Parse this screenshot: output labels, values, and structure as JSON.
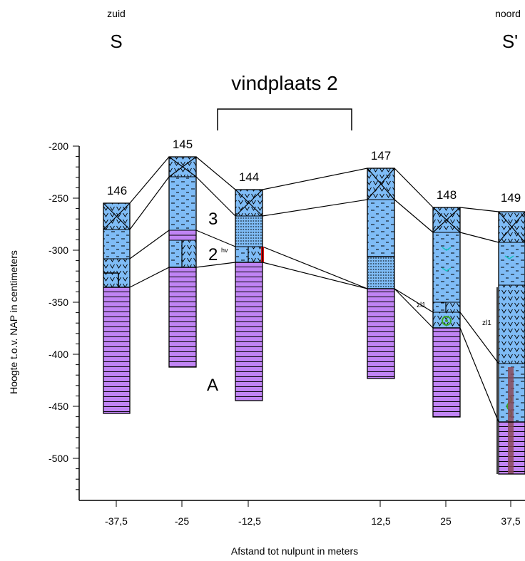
{
  "header": {
    "south_small": "zuid",
    "south_big": "S",
    "north_small": "noord",
    "north_big": "S'",
    "site_label": "vindplaats 2"
  },
  "axes": {
    "y_label": "Hoogte t.o.v. NAP in centimeters",
    "x_label": "Afstand tot nulpunt in meters",
    "y_ticks": [
      "-200",
      "-250",
      "-300",
      "-350",
      "-400",
      "-450",
      "-500"
    ],
    "x_ticks": [
      "-37,5",
      "-25",
      "-12,5",
      "12,5",
      "25",
      "37,5"
    ]
  },
  "chart_data": {
    "type": "diagram",
    "x_axis": {
      "label": "Afstand tot nulpunt in meters",
      "ticks": [
        -37.5,
        -25,
        -12.5,
        12.5,
        25,
        37.5
      ]
    },
    "y_axis": {
      "label": "Hoogte t.o.v. NAP in centimeters",
      "ticks": [
        -200,
        -250,
        -300,
        -350,
        -400,
        -450,
        -500
      ]
    },
    "cores": [
      {
        "id": "146",
        "x": -37.5,
        "top": -255,
        "bottom": -455
      },
      {
        "id": "145",
        "x": -25,
        "top": -210,
        "bottom": -410
      },
      {
        "id": "144",
        "x": -12.5,
        "top": -240,
        "bottom": -442
      },
      {
        "id": "147",
        "x": 12.5,
        "top": -222,
        "bottom": -421
      },
      {
        "id": "148",
        "x": 25,
        "top": -259,
        "bottom": -458
      },
      {
        "id": "149",
        "x": 37.5,
        "top": -263,
        "bottom": -511
      }
    ]
  },
  "annotations": {
    "unit3": "3",
    "unit2": "2",
    "unit2_sup": "hv",
    "unitA": "A",
    "zl1_a": "zl1",
    "zl1_b": "zl1"
  },
  "colors": {
    "peat_blue": "#7fbcf6",
    "sand_purple": "#c084f4",
    "red_mark": "#e01010",
    "teal_mark": "#19c4c4",
    "green_mark": "#3aa62a",
    "dark_root": "#8a4a5a"
  }
}
